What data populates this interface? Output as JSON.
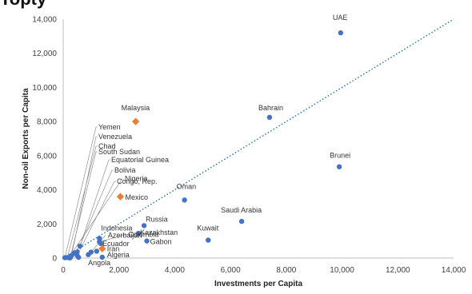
{
  "heading": "Topty",
  "chart_data": {
    "type": "scatter",
    "xlabel": "Investments per Capita",
    "ylabel": "Non-oil Exports per Capita",
    "xlim": [
      0,
      14000
    ],
    "ylim": [
      0,
      14000
    ],
    "xticks": [
      0,
      2000,
      4000,
      6000,
      8000,
      10000,
      12000,
      14000
    ],
    "yticks": [
      0,
      2000,
      4000,
      6000,
      8000,
      10000,
      12000,
      14000
    ],
    "tick_labels": [
      "0",
      "2,000",
      "4,000",
      "6,000",
      "8,000",
      "10,000",
      "12,000",
      "14,000"
    ],
    "grid": false,
    "colors": {
      "default": "#4472c4",
      "highlight": "#ed7d31",
      "trend": "#2e75b6",
      "axis": "#bfbfbf"
    },
    "trendline": {
      "style": "dotted",
      "from": [
        0,
        0
      ],
      "to": [
        14000,
        14000
      ]
    },
    "points": [
      {
        "label": "UAE",
        "x": 9950,
        "y": 13200,
        "highlight": false
      },
      {
        "label": "Bahrain",
        "x": 7400,
        "y": 8250,
        "highlight": false
      },
      {
        "label": "Malaysia",
        "x": 2600,
        "y": 8000,
        "highlight": true
      },
      {
        "label": "Brunei",
        "x": 9900,
        "y": 5350,
        "highlight": false
      },
      {
        "label": "Oman",
        "x": 4350,
        "y": 3400,
        "highlight": false
      },
      {
        "label": "Saudi Arabia",
        "x": 6400,
        "y": 2150,
        "highlight": false
      },
      {
        "label": "Kuwait",
        "x": 5200,
        "y": 1050,
        "highlight": false
      },
      {
        "label": "Russia",
        "x": 2900,
        "y": 1900,
        "highlight": false
      },
      {
        "label": "Kazakhstan",
        "x": 2700,
        "y": 1450,
        "highlight": false
      },
      {
        "label": "Gabon",
        "x": 3000,
        "y": 1000,
        "highlight": false
      },
      {
        "label": "Mexico",
        "x": 2050,
        "y": 3600,
        "highlight": true
      },
      {
        "label": "Nigeria",
        "x": 200,
        "y": 20,
        "highlight": false
      },
      {
        "label": "Azerbaijan",
        "x": 1000,
        "y": 350,
        "highlight": false
      },
      {
        "label": "Indonesia",
        "x": 1300,
        "y": 1150,
        "highlight": false
      },
      {
        "label": "Ecuador",
        "x": 1350,
        "y": 850,
        "highlight": false
      },
      {
        "label": "Iran",
        "x": 1400,
        "y": 550,
        "highlight": true
      },
      {
        "label": "Colombia",
        "x": 1300,
        "y": 950,
        "highlight": false
      },
      {
        "label": "Algeria",
        "x": 1400,
        "y": 50,
        "highlight": false
      },
      {
        "label": "Angola",
        "x": 550,
        "y": 40,
        "highlight": false
      },
      {
        "label": "Yemen",
        "x": 60,
        "y": 20,
        "highlight": false
      },
      {
        "label": "Venezuela",
        "x": 300,
        "y": 150,
        "highlight": false
      },
      {
        "label": "Chad",
        "x": 150,
        "y": 30,
        "highlight": false
      },
      {
        "label": "South Sudan",
        "x": 250,
        "y": 10,
        "highlight": false
      },
      {
        "label": "Equatorial Guinea",
        "x": 600,
        "y": 700,
        "highlight": false
      },
      {
        "label": "Bolivia",
        "x": 500,
        "y": 350,
        "highlight": false
      },
      {
        "label": "Congo, Rep.",
        "x": 500,
        "y": 150,
        "highlight": false
      },
      {
        "label": "",
        "x": 900,
        "y": 200,
        "highlight": false
      },
      {
        "label": "",
        "x": 400,
        "y": 300,
        "highlight": false
      },
      {
        "label": "",
        "x": 1200,
        "y": 400,
        "highlight": false
      }
    ]
  }
}
